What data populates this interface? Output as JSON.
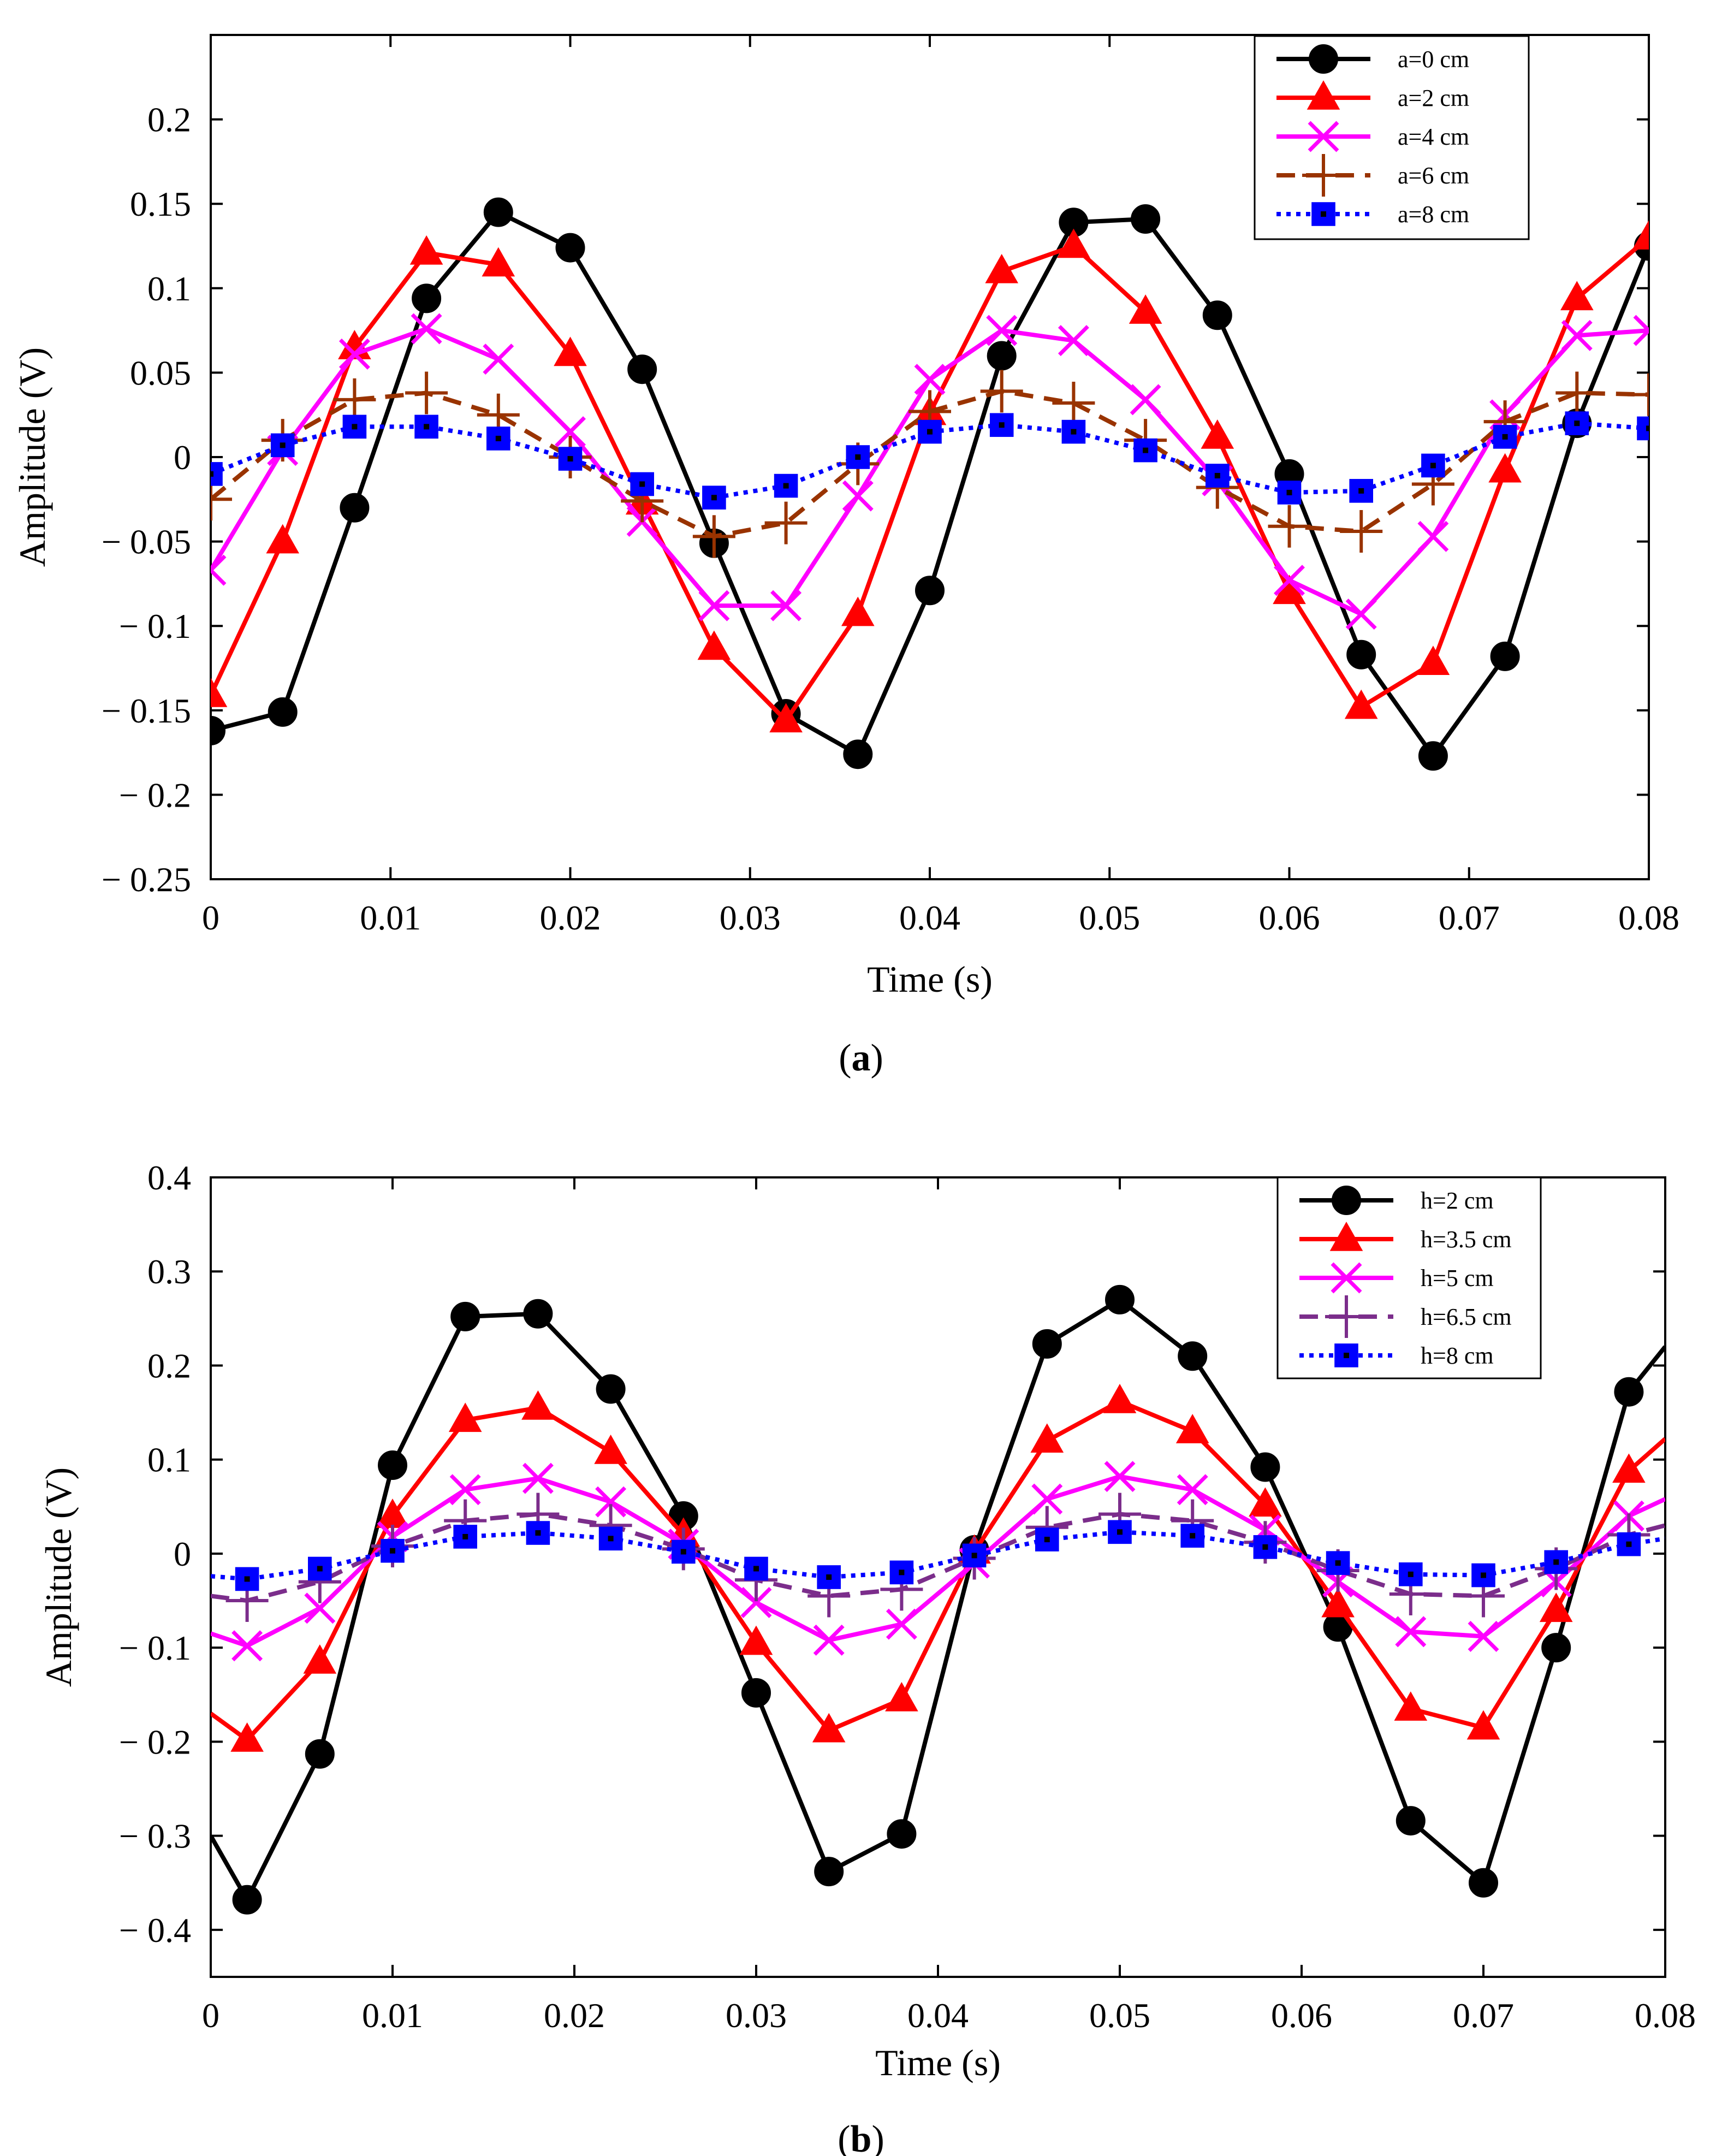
{
  "chart_data": [
    {
      "type": "line",
      "id": "a",
      "caption": {
        "open": "(",
        "letter": "a",
        "close": ")"
      },
      "xlabel": "Time (s)",
      "ylabel": "Amplitude (V)",
      "xlim": [
        0,
        0.08
      ],
      "ylim": [
        -0.25,
        0.25
      ],
      "xticks": [
        0,
        0.01,
        0.02,
        0.03,
        0.04,
        0.05,
        0.06,
        0.07,
        0.08
      ],
      "xtick_labels": [
        "0",
        "0.01",
        "0.02",
        "0.03",
        "0.04",
        "0.05",
        "0.06",
        "0.07",
        "0.08"
      ],
      "yticks": [
        -0.25,
        -0.2,
        -0.15,
        -0.1,
        -0.05,
        0,
        0.05,
        0.1,
        0.15,
        0.2
      ],
      "ytick_labels": [
        "− 0.25",
        "− 0.2",
        "− 0.15",
        "− 0.1",
        "− 0.05",
        "0",
        "0.05",
        "0.1",
        "0.15",
        "0.2"
      ],
      "grid": false,
      "legend_position": "top-right",
      "series": [
        {
          "name": "a=0 cm",
          "color": "#000000",
          "marker": "circle",
          "dash": "solid",
          "x": [
            0,
            0.004,
            0.008,
            0.012,
            0.016,
            0.02,
            0.024,
            0.028,
            0.032,
            0.036,
            0.04,
            0.044,
            0.048,
            0.052,
            0.056,
            0.06,
            0.064,
            0.068,
            0.072,
            0.076,
            0.08
          ],
          "y": [
            -0.162,
            -0.151,
            -0.03,
            0.094,
            0.145,
            0.124,
            0.052,
            -0.051,
            -0.152,
            -0.176,
            -0.079,
            0.06,
            0.139,
            0.141,
            0.084,
            -0.01,
            -0.117,
            -0.177,
            -0.118,
            0.02,
            0.125
          ]
        },
        {
          "name": "a=2 cm",
          "color": "#ff0000",
          "marker": "triangle",
          "dash": "solid",
          "x": [
            0,
            0.004,
            0.008,
            0.012,
            0.016,
            0.02,
            0.024,
            0.028,
            0.032,
            0.036,
            0.04,
            0.044,
            0.048,
            0.052,
            0.056,
            0.06,
            0.064,
            0.068,
            0.072,
            0.076,
            0.08
          ],
          "y": [
            -0.141,
            -0.05,
            0.065,
            0.121,
            0.114,
            0.061,
            -0.027,
            -0.113,
            -0.156,
            -0.093,
            0.026,
            0.11,
            0.125,
            0.086,
            0.012,
            -0.08,
            -0.148,
            -0.122,
            -0.008,
            0.094,
            0.13
          ]
        },
        {
          "name": "a=4 cm",
          "color": "#ff00ff",
          "marker": "x",
          "dash": "solid",
          "x": [
            0,
            0.004,
            0.008,
            0.012,
            0.016,
            0.02,
            0.024,
            0.028,
            0.032,
            0.036,
            0.04,
            0.044,
            0.048,
            0.052,
            0.056,
            0.06,
            0.064,
            0.068,
            0.072,
            0.076,
            0.08
          ],
          "y": [
            -0.067,
            0.004,
            0.061,
            0.076,
            0.058,
            0.015,
            -0.038,
            -0.088,
            -0.088,
            -0.023,
            0.046,
            0.075,
            0.069,
            0.034,
            -0.014,
            -0.073,
            -0.093,
            -0.047,
            0.025,
            0.072,
            0.075
          ]
        },
        {
          "name": "a=6 cm",
          "color": "#993300",
          "marker": "plus",
          "dash": "dashed",
          "x": [
            0,
            0.004,
            0.008,
            0.012,
            0.016,
            0.02,
            0.024,
            0.028,
            0.032,
            0.036,
            0.04,
            0.044,
            0.048,
            0.052,
            0.056,
            0.06,
            0.064,
            0.068,
            0.072,
            0.076,
            0.08
          ],
          "y": [
            -0.025,
            0.01,
            0.034,
            0.038,
            0.025,
            0.0,
            -0.026,
            -0.047,
            -0.039,
            -0.004,
            0.027,
            0.039,
            0.032,
            0.01,
            -0.018,
            -0.041,
            -0.044,
            -0.016,
            0.021,
            0.038,
            0.037
          ]
        },
        {
          "name": "a=8 cm",
          "color": "#0000ff",
          "marker": "square",
          "dash": "dotted",
          "x": [
            0,
            0.004,
            0.008,
            0.012,
            0.016,
            0.02,
            0.024,
            0.028,
            0.032,
            0.036,
            0.04,
            0.044,
            0.048,
            0.052,
            0.056,
            0.06,
            0.064,
            0.068,
            0.072,
            0.076,
            0.08
          ],
          "y": [
            -0.01,
            0.007,
            0.018,
            0.018,
            0.011,
            -0.001,
            -0.016,
            -0.024,
            -0.017,
            0.0,
            0.015,
            0.019,
            0.015,
            0.004,
            -0.011,
            -0.021,
            -0.02,
            -0.005,
            0.012,
            0.02,
            0.017
          ]
        }
      ]
    },
    {
      "type": "line",
      "id": "b",
      "caption": {
        "open": "(",
        "letter": "b",
        "close": ")"
      },
      "xlabel": "Time (s)",
      "ylabel": "Amplitude (V)",
      "xlim": [
        0,
        0.08
      ],
      "ylim": [
        -0.45,
        0.4
      ],
      "xticks": [
        0,
        0.01,
        0.02,
        0.03,
        0.04,
        0.05,
        0.06,
        0.07,
        0.08
      ],
      "xtick_labels": [
        "0",
        "0.01",
        "0.02",
        "0.03",
        "0.04",
        "0.05",
        "0.06",
        "0.07",
        "0.08"
      ],
      "yticks": [
        -0.4,
        -0.3,
        -0.2,
        -0.1,
        0,
        0.1,
        0.2,
        0.3,
        0.4
      ],
      "ytick_labels": [
        "− 0.4",
        "− 0.3",
        "− 0.2",
        "− 0.1",
        "0",
        "0.1",
        "0.2",
        "0.3",
        "0.4"
      ],
      "grid": false,
      "legend_position": "top-right",
      "series": [
        {
          "name": "h=2 cm",
          "color": "#000000",
          "marker": "circle",
          "dash": "solid",
          "x": [
            0,
            0.002,
            0.006,
            0.01,
            0.014,
            0.018,
            0.022,
            0.026,
            0.03,
            0.034,
            0.038,
            0.042,
            0.046,
            0.05,
            0.054,
            0.058,
            0.062,
            0.066,
            0.07,
            0.074,
            0.078,
            0.08
          ],
          "y": [
            -0.3,
            -0.368,
            -0.213,
            0.094,
            0.252,
            0.255,
            0.175,
            0.04,
            -0.148,
            -0.338,
            -0.298,
            0.004,
            0.223,
            0.27,
            0.21,
            0.092,
            -0.078,
            -0.284,
            -0.35,
            -0.1,
            0.172,
            0.22
          ],
          "marker_hidden": [
            0,
            21
          ]
        },
        {
          "name": "h=3.5 cm",
          "color": "#ff0000",
          "marker": "triangle",
          "dash": "solid",
          "x": [
            0,
            0.002,
            0.006,
            0.01,
            0.014,
            0.018,
            0.022,
            0.026,
            0.03,
            0.034,
            0.038,
            0.042,
            0.046,
            0.05,
            0.054,
            0.058,
            0.062,
            0.066,
            0.07,
            0.074,
            0.078,
            0.08
          ],
          "y": [
            -0.17,
            -0.198,
            -0.115,
            0.04,
            0.142,
            0.155,
            0.108,
            0.02,
            -0.095,
            -0.188,
            -0.155,
            0.002,
            0.12,
            0.162,
            0.13,
            0.052,
            -0.055,
            -0.165,
            -0.185,
            -0.06,
            0.088,
            0.122
          ],
          "marker_hidden": [
            0,
            21
          ]
        },
        {
          "name": "h=5 cm",
          "color": "#ff00ff",
          "marker": "x",
          "dash": "solid",
          "x": [
            0,
            0.002,
            0.006,
            0.01,
            0.014,
            0.018,
            0.022,
            0.026,
            0.03,
            0.034,
            0.038,
            0.042,
            0.046,
            0.05,
            0.054,
            0.058,
            0.062,
            0.066,
            0.07,
            0.074,
            0.078,
            0.08
          ],
          "y": [
            -0.085,
            -0.098,
            -0.058,
            0.018,
            0.068,
            0.08,
            0.055,
            0.01,
            -0.052,
            -0.092,
            -0.075,
            -0.01,
            0.058,
            0.082,
            0.068,
            0.025,
            -0.03,
            -0.083,
            -0.088,
            -0.03,
            0.04,
            0.058
          ],
          "marker_hidden": [
            0,
            21
          ]
        },
        {
          "name": "h=6.5 cm",
          "color": "#7b2d8b",
          "marker": "plus",
          "dash": "dashed",
          "x": [
            0,
            0.002,
            0.006,
            0.01,
            0.014,
            0.018,
            0.022,
            0.026,
            0.03,
            0.034,
            0.038,
            0.042,
            0.046,
            0.05,
            0.054,
            0.058,
            0.062,
            0.066,
            0.07,
            0.074,
            0.078,
            0.08
          ],
          "y": [
            -0.045,
            -0.05,
            -0.03,
            0.008,
            0.035,
            0.042,
            0.03,
            0.005,
            -0.028,
            -0.045,
            -0.038,
            -0.005,
            0.028,
            0.042,
            0.035,
            0.012,
            -0.018,
            -0.043,
            -0.045,
            -0.016,
            0.02,
            0.03
          ],
          "marker_hidden": [
            0,
            21
          ]
        },
        {
          "name": "h=8 cm",
          "color": "#0000ff",
          "marker": "square",
          "dash": "dotted",
          "x": [
            0,
            0.002,
            0.006,
            0.01,
            0.014,
            0.018,
            0.022,
            0.026,
            0.03,
            0.034,
            0.038,
            0.042,
            0.046,
            0.05,
            0.054,
            0.058,
            0.062,
            0.066,
            0.07,
            0.074,
            0.078,
            0.08
          ],
          "y": [
            -0.024,
            -0.027,
            -0.016,
            0.003,
            0.018,
            0.022,
            0.016,
            0.002,
            -0.016,
            -0.025,
            -0.02,
            -0.002,
            0.015,
            0.023,
            0.019,
            0.007,
            -0.01,
            -0.022,
            -0.023,
            -0.009,
            0.01,
            0.016
          ],
          "marker_hidden": [
            0,
            21
          ]
        }
      ]
    }
  ]
}
